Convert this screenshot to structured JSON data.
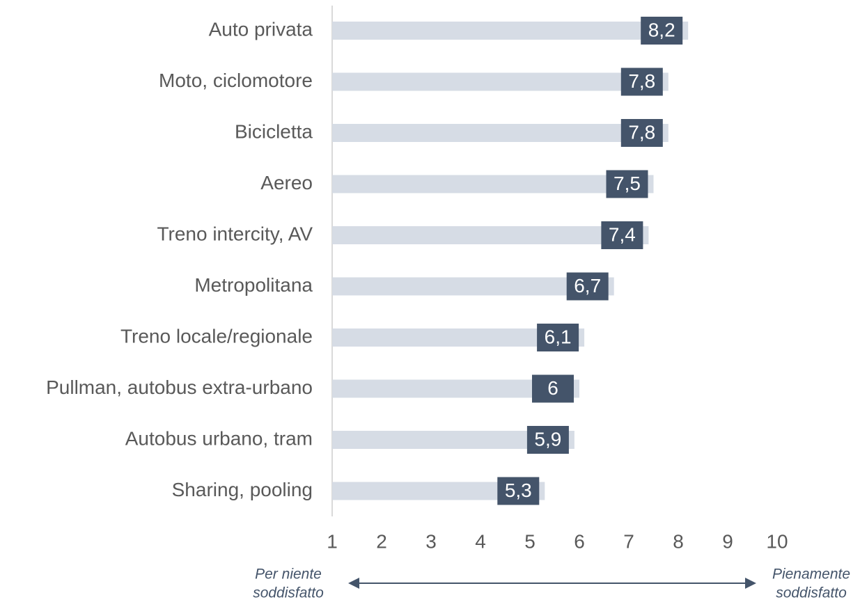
{
  "chart_data": {
    "type": "bar",
    "orientation": "horizontal",
    "categories": [
      "Auto privata",
      "Moto, ciclomotore",
      "Bicicletta",
      "Aereo",
      "Treno intercity, AV",
      "Metropolitana",
      "Treno locale/regionale",
      "Pullman, autobus extra-urbano",
      "Autobus urbano, tram",
      "Sharing, pooling"
    ],
    "values": [
      8.2,
      7.8,
      7.8,
      7.5,
      7.4,
      6.7,
      6.1,
      6,
      5.9,
      5.3
    ],
    "value_labels": [
      "8,2",
      "7,8",
      "7,8",
      "7,5",
      "7,4",
      "6,7",
      "6,1",
      "6",
      "5,9",
      "5,3"
    ],
    "color": "#d6dce5",
    "label_color": "#44546a",
    "xlim": [
      1,
      10
    ],
    "xticks": [
      1,
      2,
      3,
      4,
      5,
      6,
      7,
      8,
      9,
      10
    ],
    "annotations": {
      "left": [
        "Per niente",
        "soddisfatto"
      ],
      "right": [
        "Pienamente",
        "soddisfatto"
      ]
    }
  }
}
